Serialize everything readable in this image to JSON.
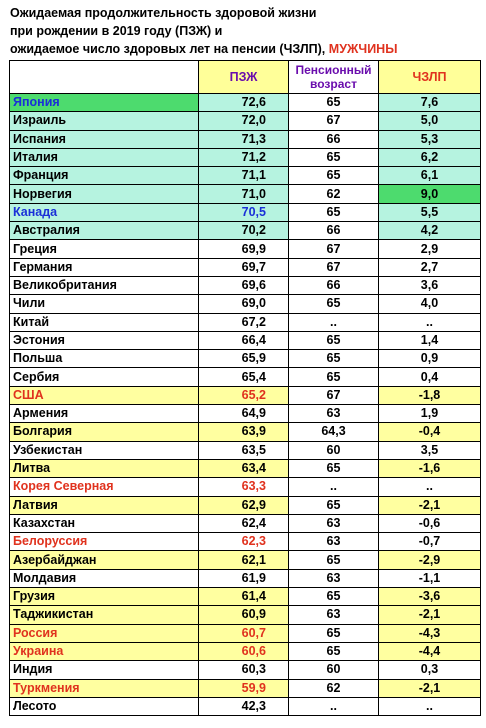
{
  "title": {
    "line1": "Ожидаемая продолжительность здоровой жизни",
    "line2": "при рождении в 2019 году (ПЗЖ) и",
    "line3_main": "ожидаемое число здоровых лет на пенсии (ЧЗЛП),",
    "line3_accent": "МУЖЧИНЫ"
  },
  "columns": {
    "country": "",
    "pzh": "ПЗЖ",
    "pension": "Пенсионный возраст",
    "chzlp": "ЧЗЛП"
  },
  "colors": {
    "green": "#4ddb6e",
    "teal": "#b6f3e0",
    "yellow": "#ffffa0",
    "blue_text": "#1a2fd8",
    "red_text": "#e0321e",
    "purple_text": "#6a0dad"
  },
  "rows": [
    {
      "country": "Япония",
      "pzh": "72,6",
      "pension": "65",
      "chzlp": "7,6"
    },
    {
      "country": "Израиль",
      "pzh": "72,0",
      "pension": "67",
      "chzlp": "5,0"
    },
    {
      "country": "Испания",
      "pzh": "71,3",
      "pension": "66",
      "chzlp": "5,3"
    },
    {
      "country": "Италия",
      "pzh": "71,2",
      "pension": "65",
      "chzlp": "6,2"
    },
    {
      "country": "Франция",
      "pzh": "71,1",
      "pension": "65",
      "chzlp": "6,1"
    },
    {
      "country": "Норвегия",
      "pzh": "71,0",
      "pension": "62",
      "chzlp": "9,0"
    },
    {
      "country": "Канада",
      "pzh": "70,5",
      "pension": "65",
      "chzlp": "5,5"
    },
    {
      "country": "Австралия",
      "pzh": "70,2",
      "pension": "66",
      "chzlp": "4,2"
    },
    {
      "country": "Греция",
      "pzh": "69,9",
      "pension": "67",
      "chzlp": "2,9"
    },
    {
      "country": "Германия",
      "pzh": "69,7",
      "pension": "67",
      "chzlp": "2,7"
    },
    {
      "country": "Великобритания",
      "pzh": "69,6",
      "pension": "66",
      "chzlp": "3,6"
    },
    {
      "country": "Чили",
      "pzh": "69,0",
      "pension": "65",
      "chzlp": "4,0"
    },
    {
      "country": "Китай",
      "pzh": "67,2",
      "pension": "..",
      "chzlp": ".."
    },
    {
      "country": "Эстония",
      "pzh": "66,4",
      "pension": "65",
      "chzlp": "1,4"
    },
    {
      "country": "Польша",
      "pzh": "65,9",
      "pension": "65",
      "chzlp": "0,9"
    },
    {
      "country": "Сербия",
      "pzh": "65,4",
      "pension": "65",
      "chzlp": "0,4"
    },
    {
      "country": "США",
      "pzh": "65,2",
      "pension": "67",
      "chzlp": "-1,8"
    },
    {
      "country": "Армения",
      "pzh": "64,9",
      "pension": "63",
      "chzlp": "1,9"
    },
    {
      "country": "Болгария",
      "pzh": "63,9",
      "pension": "64,3",
      "chzlp": "-0,4"
    },
    {
      "country": "Узбекистан",
      "pzh": "63,5",
      "pension": "60",
      "chzlp": "3,5"
    },
    {
      "country": "Литва",
      "pzh": "63,4",
      "pension": "65",
      "chzlp": "-1,6"
    },
    {
      "country": "Корея Северная",
      "pzh": "63,3",
      "pension": "..",
      "chzlp": ".."
    },
    {
      "country": "Латвия",
      "pzh": "62,9",
      "pension": "65",
      "chzlp": "-2,1"
    },
    {
      "country": "Казахстан",
      "pzh": "62,4",
      "pension": "63",
      "chzlp": "-0,6"
    },
    {
      "country": "Белоруссия",
      "pzh": "62,3",
      "pension": "63",
      "chzlp": "-0,7"
    },
    {
      "country": "Азербайджан",
      "pzh": "62,1",
      "pension": "65",
      "chzlp": "-2,9"
    },
    {
      "country": "Молдавия",
      "pzh": "61,9",
      "pension": "63",
      "chzlp": "-1,1"
    },
    {
      "country": "Грузия",
      "pzh": "61,4",
      "pension": "65",
      "chzlp": "-3,6"
    },
    {
      "country": "Таджикистан",
      "pzh": "60,9",
      "pension": "63",
      "chzlp": "-2,1"
    },
    {
      "country": "Россия",
      "pzh": "60,7",
      "pension": "65",
      "chzlp": "-4,3"
    },
    {
      "country": "Украина",
      "pzh": "60,6",
      "pension": "65",
      "chzlp": "-4,4"
    },
    {
      "country": "Индия",
      "pzh": "60,3",
      "pension": "60",
      "chzlp": "0,3"
    },
    {
      "country": "Туркмения",
      "pzh": "59,9",
      "pension": "62",
      "chzlp": "-2,1"
    },
    {
      "country": "Лесото",
      "pzh": "42,3",
      "pension": "..",
      "chzlp": ".."
    }
  ]
}
